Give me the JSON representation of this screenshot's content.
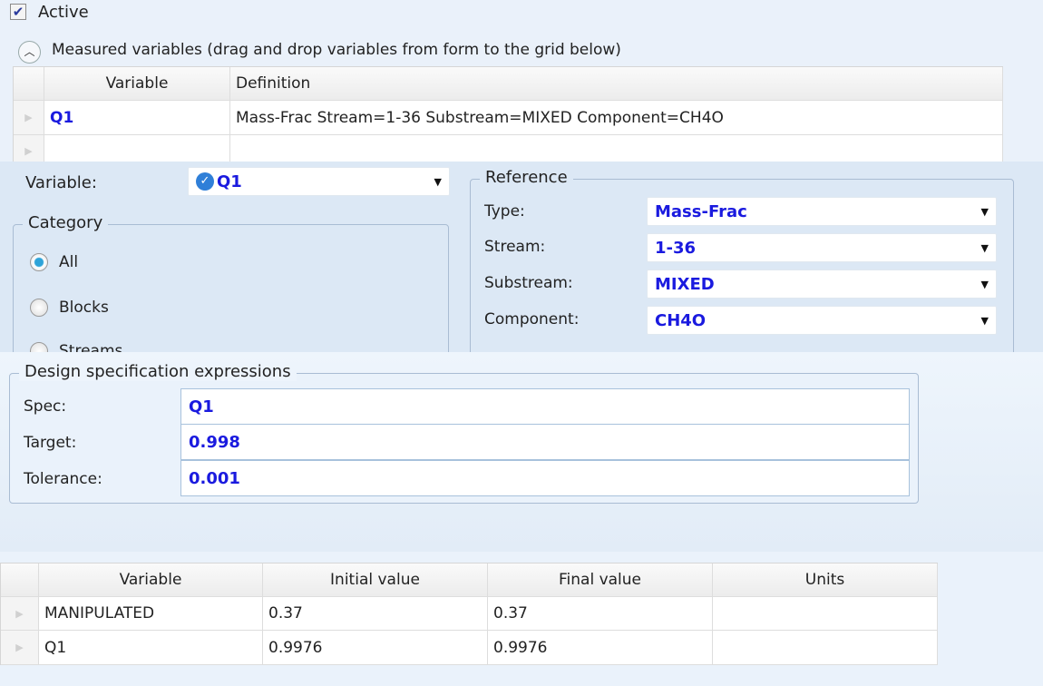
{
  "active": {
    "label": "Active",
    "checked": true
  },
  "measured": {
    "title": "Measured variables (drag and drop variables from form to the grid below)",
    "columns": [
      "Variable",
      "Definition"
    ],
    "rows": [
      {
        "variable": "Q1",
        "definition": "Mass-Frac Stream=1-36 Substream=MIXED Component=CH4O"
      }
    ]
  },
  "variable_form": {
    "variable_label": "Variable:",
    "variable_value": "Q1",
    "category": {
      "title": "Category",
      "options": [
        "All",
        "Blocks",
        "Streams"
      ],
      "selected": "All"
    },
    "reference": {
      "title": "Reference",
      "fields": [
        {
          "label": "Type:",
          "value": "Mass-Frac"
        },
        {
          "label": "Stream:",
          "value": "1-36"
        },
        {
          "label": "Substream:",
          "value": "MIXED"
        },
        {
          "label": "Component:",
          "value": "CH4O"
        }
      ]
    }
  },
  "design_spec": {
    "title": "Design specification expressions",
    "fields": [
      {
        "label": "Spec:",
        "value": "Q1"
      },
      {
        "label": "Target:",
        "value": "0.998"
      },
      {
        "label": "Tolerance:",
        "value": "0.001"
      }
    ]
  },
  "results": {
    "columns": [
      "Variable",
      "Initial value",
      "Final value",
      "Units"
    ],
    "rows": [
      {
        "variable": "MANIPULATED",
        "initial": "0.37",
        "final": "0.37",
        "units": ""
      },
      {
        "variable": "Q1",
        "initial": "0.9976",
        "final": "0.9976",
        "units": ""
      }
    ]
  },
  "colors": {
    "value_text": "#1a1adf",
    "panel_bg": "#eaf1fa",
    "group_border": "#a9bcd3"
  }
}
